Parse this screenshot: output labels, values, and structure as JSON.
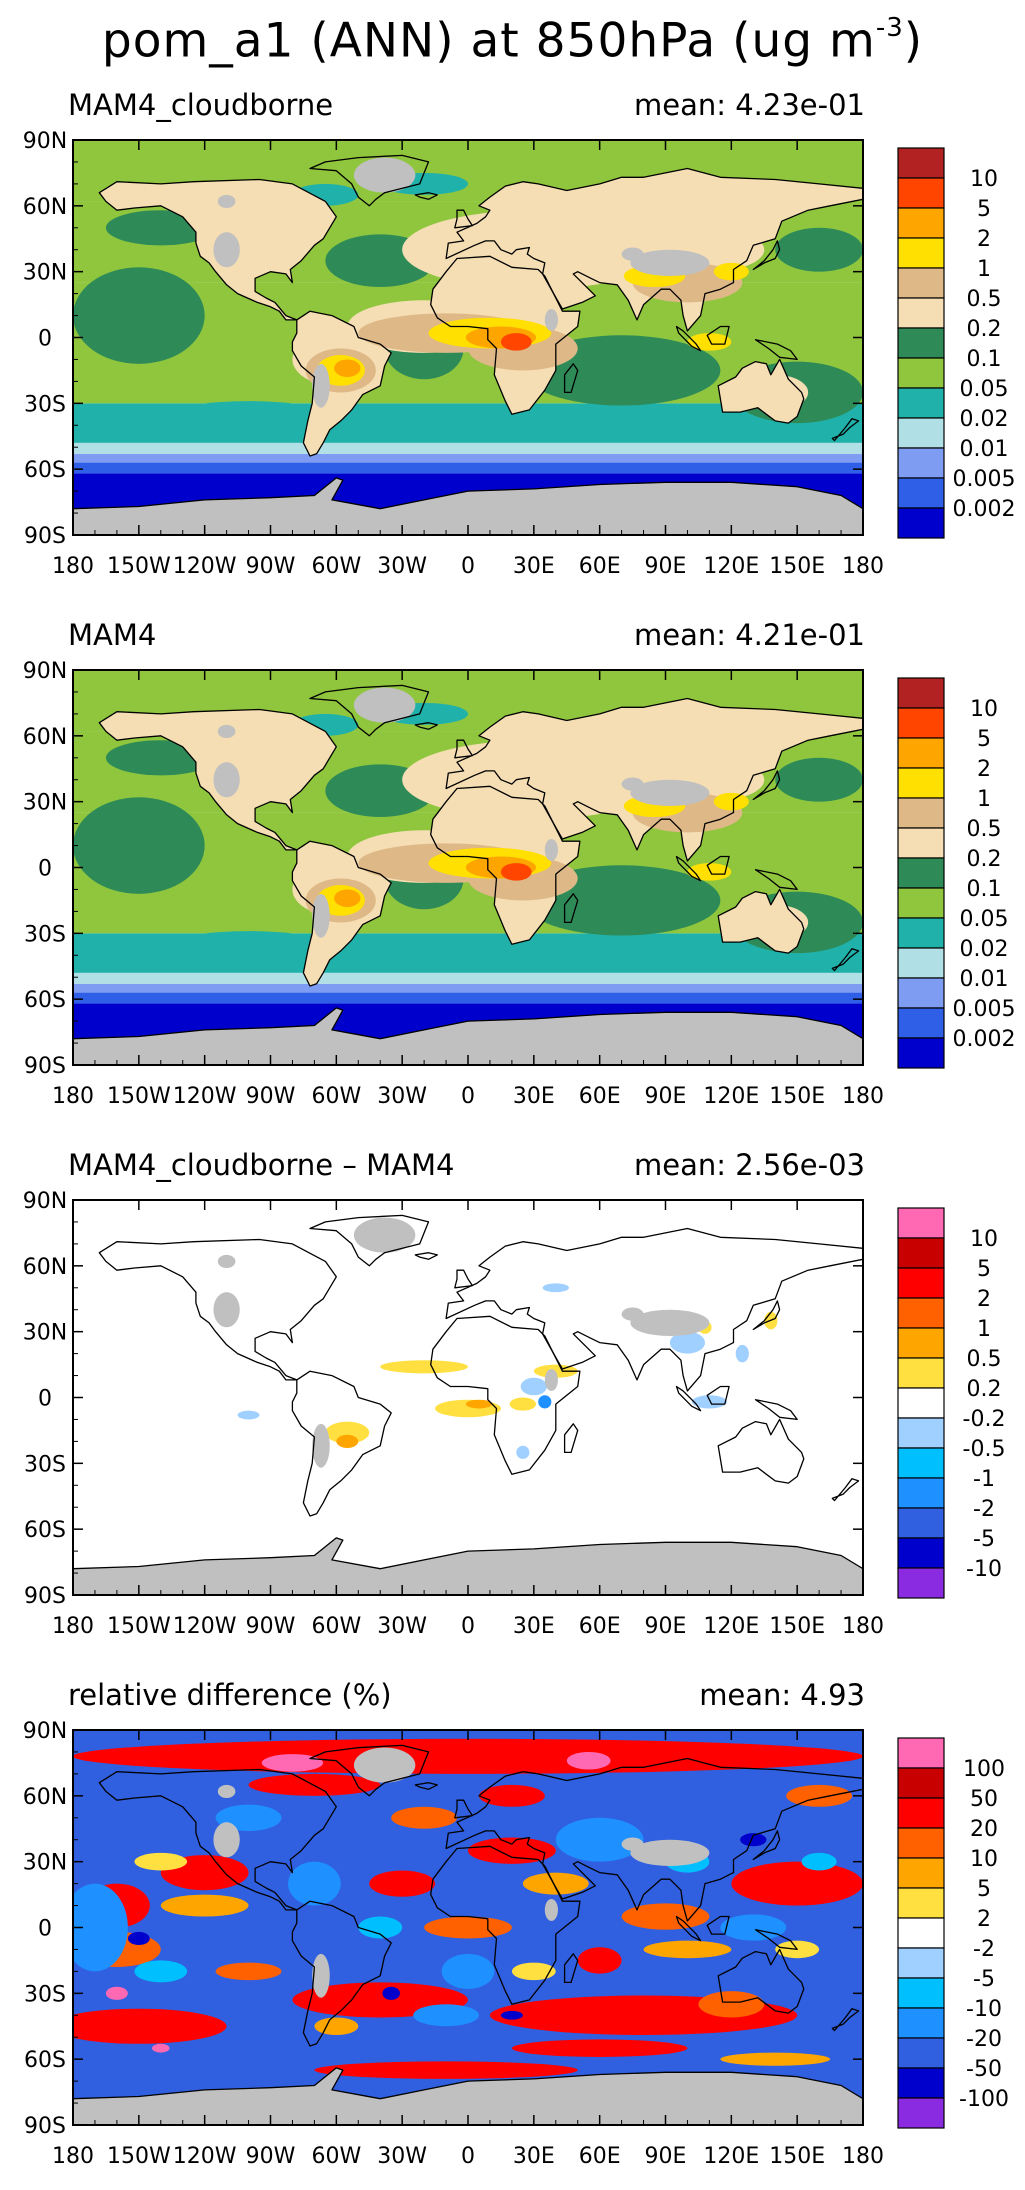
{
  "figure": {
    "title_main": "pom_a1 (ANN) at 850hPa (ug m",
    "title_exp": "-3",
    "title_end": ")"
  },
  "colors": {
    "land_mask": "#c0c0c0",
    "abs_scale": [
      "#0000cd",
      "#2f5fe6",
      "#7d9cf2",
      "#b0e0e6",
      "#20b2aa",
      "#8fc63e",
      "#2e8b57",
      "#f5deb3",
      "#deb887",
      "#ffe000",
      "#ffa500",
      "#ff4500",
      "#b22222"
    ],
    "diff_scale": [
      "#8a2be2",
      "#0000cd",
      "#3060e0",
      "#1e90ff",
      "#00bfff",
      "#a0d0ff",
      "#ffffff",
      "#ffe040",
      "#ffa500",
      "#ff6000",
      "#ff0000",
      "#c80000",
      "#ff69b4"
    ]
  },
  "chart_data": [
    {
      "type": "heatmap",
      "panel_left": "MAM4_cloudborne",
      "panel_right": "mean: 4.23e-01",
      "x_ticks": [
        "180",
        "150W",
        "120W",
        "90W",
        "60W",
        "30W",
        "0",
        "30E",
        "60E",
        "90E",
        "120E",
        "150E",
        "180"
      ],
      "y_ticks": [
        "90N",
        "60N",
        "30N",
        "0",
        "30S",
        "60S",
        "90S"
      ],
      "levels": [
        "10",
        "5",
        "2",
        "1",
        "0.5",
        "0.2",
        "0.1",
        "0.05",
        "0.02",
        "0.01",
        "0.005",
        "0.002"
      ],
      "scale": "abs"
    },
    {
      "type": "heatmap",
      "panel_left": "MAM4",
      "panel_right": "mean: 4.21e-01",
      "x_ticks": [
        "180",
        "150W",
        "120W",
        "90W",
        "60W",
        "30W",
        "0",
        "30E",
        "60E",
        "90E",
        "120E",
        "150E",
        "180"
      ],
      "y_ticks": [
        "90N",
        "60N",
        "30N",
        "0",
        "30S",
        "60S",
        "90S"
      ],
      "levels": [
        "10",
        "5",
        "2",
        "1",
        "0.5",
        "0.2",
        "0.1",
        "0.05",
        "0.02",
        "0.01",
        "0.005",
        "0.002"
      ],
      "scale": "abs"
    },
    {
      "type": "heatmap",
      "panel_left": "MAM4_cloudborne – MAM4",
      "panel_right": "mean: 2.56e-03",
      "x_ticks": [
        "180",
        "150W",
        "120W",
        "90W",
        "60W",
        "30W",
        "0",
        "30E",
        "60E",
        "90E",
        "120E",
        "150E",
        "180"
      ],
      "y_ticks": [
        "90N",
        "60N",
        "30N",
        "0",
        "30S",
        "60S",
        "90S"
      ],
      "levels": [
        "10",
        "5",
        "2",
        "1",
        "0.5",
        "0.2",
        "-0.2",
        "-0.5",
        "-1",
        "-2",
        "-5",
        "-10"
      ],
      "scale": "diff"
    },
    {
      "type": "heatmap",
      "panel_left": "relative difference (%)",
      "panel_right": "mean:   4.93",
      "x_ticks": [
        "180",
        "150W",
        "120W",
        "90W",
        "60W",
        "30W",
        "0",
        "30E",
        "60E",
        "90E",
        "120E",
        "150E",
        "180"
      ],
      "y_ticks": [
        "90N",
        "60N",
        "30N",
        "0",
        "30S",
        "60S",
        "90S"
      ],
      "levels": [
        "100",
        "50",
        "20",
        "10",
        "5",
        "2",
        "-2",
        "-5",
        "-10",
        "-20",
        "-50",
        "-100"
      ],
      "scale": "rel"
    }
  ]
}
